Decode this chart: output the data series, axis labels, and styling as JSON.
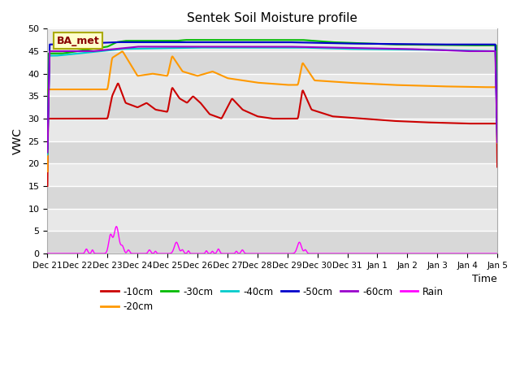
{
  "title": "Sentek Soil Moisture profile",
  "xlabel": "Time",
  "ylabel": "VWC",
  "legend_label": "BA_met",
  "ylim": [
    0,
    50
  ],
  "xlim": [
    0,
    15
  ],
  "yticks": [
    0,
    5,
    10,
    15,
    20,
    25,
    30,
    35,
    40,
    45,
    50
  ],
  "xtick_labels": [
    "Dec 21",
    "Dec 22",
    "Dec 23",
    "Dec 24",
    "Dec 25",
    "Dec 26",
    "Dec 27",
    "Dec 28",
    "Dec 29",
    "Dec 30",
    "Dec 31",
    "Jan 1",
    "Jan 2",
    "Jan 3",
    "Jan 4",
    "Jan 5"
  ],
  "colors": {
    "-10cm": "#cc0000",
    "-20cm": "#ff9900",
    "-30cm": "#00bb00",
    "-40cm": "#00cccc",
    "-50cm": "#0000cc",
    "-60cm": "#9900cc",
    "Rain": "#ff00ff"
  },
  "background_color": "#d8d8d8",
  "band_color": "#e8e8e8",
  "title_fontsize": 11,
  "grid_color": "#ffffff"
}
